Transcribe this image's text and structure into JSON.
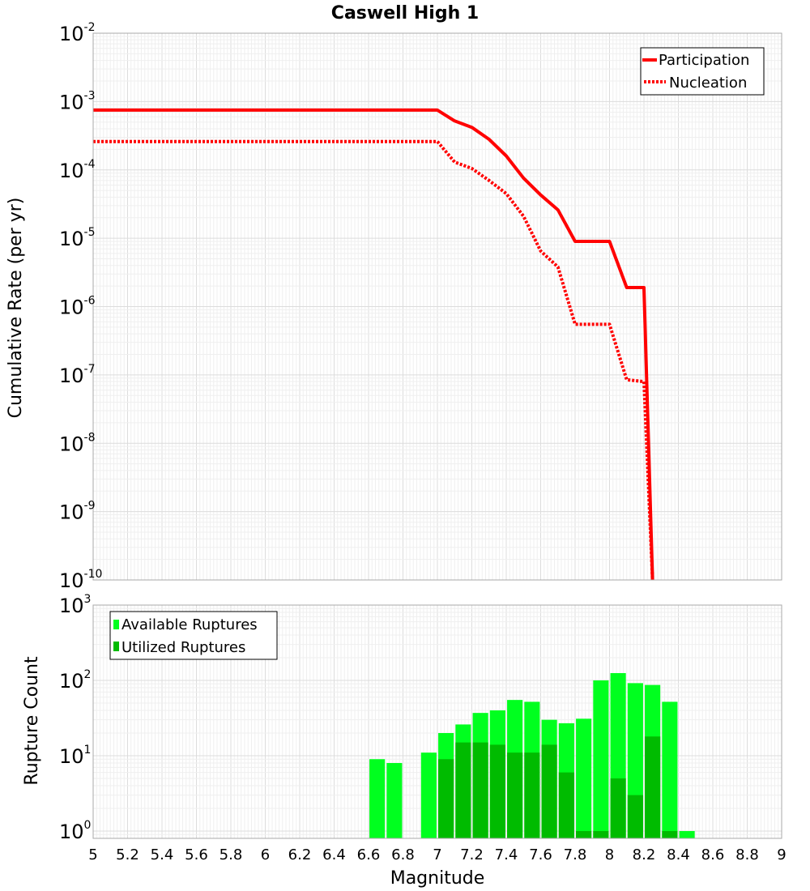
{
  "chart_data": [
    {
      "type": "line",
      "title": "Caswell High 1",
      "ylabel": "Cumulative Rate (per yr)",
      "xlabel": "",
      "xlim": [
        5,
        9
      ],
      "ylim": [
        1e-10,
        0.01
      ],
      "yscale": "log",
      "grid": true,
      "legend_position": "top-right",
      "yticks": [
        {
          "base": "10",
          "exp": "-2",
          "value": 0.01
        },
        {
          "base": "10",
          "exp": "-3",
          "value": 0.001
        },
        {
          "base": "10",
          "exp": "-4",
          "value": 0.0001
        },
        {
          "base": "10",
          "exp": "-5",
          "value": 1e-05
        },
        {
          "base": "10",
          "exp": "-6",
          "value": 1e-06
        },
        {
          "base": "10",
          "exp": "-7",
          "value": 1e-07
        },
        {
          "base": "10",
          "exp": "-8",
          "value": 1e-08
        },
        {
          "base": "10",
          "exp": "-9",
          "value": 1e-09
        },
        {
          "base": "10",
          "exp": "-10",
          "value": 1e-10
        }
      ],
      "series": [
        {
          "name": "Participation",
          "color": "#ff0000",
          "style": "solid",
          "x": [
            5.0,
            7.0,
            7.1,
            7.2,
            7.3,
            7.4,
            7.5,
            7.6,
            7.7,
            7.8,
            8.0,
            8.1,
            8.2,
            8.25
          ],
          "y": [
            0.00075,
            0.00075,
            0.00052,
            0.00042,
            0.00028,
            0.00016,
            7.6e-05,
            4.3e-05,
            2.6e-05,
            9e-06,
            9e-06,
            1.9e-06,
            1.9e-06,
            1e-10
          ]
        },
        {
          "name": "Nucleation",
          "color": "#ff0000",
          "style": "dotted",
          "x": [
            5.0,
            7.0,
            7.1,
            7.2,
            7.3,
            7.4,
            7.5,
            7.6,
            7.7,
            7.8,
            8.0,
            8.1,
            8.2,
            8.25
          ],
          "y": [
            0.00026,
            0.00026,
            0.00013,
            0.000105,
            7e-05,
            4.5e-05,
            2.1e-05,
            6.5e-06,
            3.8e-06,
            5.5e-07,
            5.5e-07,
            8.5e-08,
            8e-08,
            1e-10
          ]
        }
      ]
    },
    {
      "type": "bar",
      "title": "",
      "ylabel": "Rupture Count",
      "xlabel": "Magnitude",
      "xlim": [
        5,
        9
      ],
      "ylim": [
        0.8,
        1000
      ],
      "yscale": "log",
      "grid": true,
      "legend_position": "top-left",
      "xticks": [
        "5",
        "5.2",
        "5.4",
        "5.6",
        "5.8",
        "6",
        "6.2",
        "6.4",
        "6.6",
        "6.8",
        "7",
        "7.2",
        "7.4",
        "7.6",
        "7.8",
        "8",
        "8.2",
        "8.4",
        "8.6",
        "8.8",
        "9"
      ],
      "yticks": [
        {
          "base": "10",
          "exp": "3",
          "value": 1000
        },
        {
          "base": "10",
          "exp": "2",
          "value": 100
        },
        {
          "base": "10",
          "exp": "1",
          "value": 10
        },
        {
          "base": "10",
          "exp": "0",
          "value": 1
        }
      ],
      "bar_width": 0.09,
      "series": [
        {
          "name": "Available Ruptures",
          "color": "#00ff1f",
          "x": [
            6.65,
            6.75,
            6.95,
            7.05,
            7.15,
            7.25,
            7.35,
            7.45,
            7.55,
            7.65,
            7.75,
            7.85,
            7.95,
            8.05,
            8.15,
            8.25,
            8.35,
            8.45
          ],
          "values": [
            9,
            8,
            11,
            20,
            26,
            37,
            40,
            55,
            52,
            30,
            27,
            31,
            100,
            125,
            92,
            87,
            52,
            1
          ]
        },
        {
          "name": "Utilized Ruptures",
          "color": "#00bb00",
          "x": [
            7.05,
            7.15,
            7.25,
            7.35,
            7.45,
            7.55,
            7.65,
            7.75,
            7.85,
            7.95,
            8.05,
            8.15,
            8.25,
            8.35
          ],
          "values": [
            9,
            15,
            15,
            14,
            11,
            11,
            14,
            6,
            1,
            1,
            5,
            3,
            18,
            1
          ]
        }
      ]
    }
  ]
}
